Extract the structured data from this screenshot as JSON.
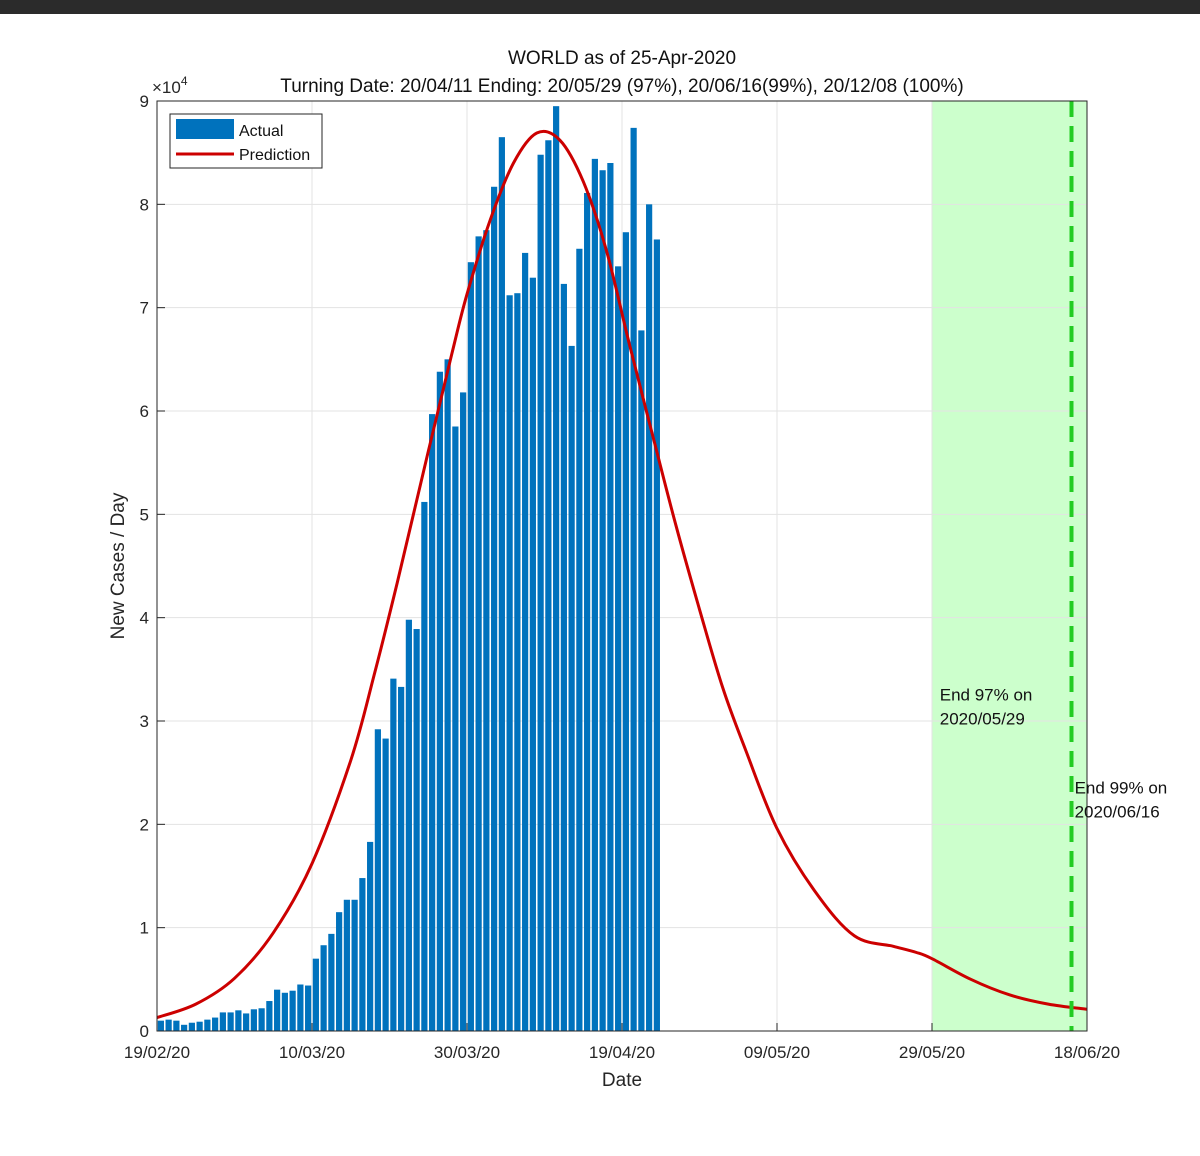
{
  "chart_data": {
    "type": "bar",
    "title": "WORLD as of 25-Apr-2020",
    "subtitle": "Turning Date: 20/04/11  Ending: 20/05/29 (97%), 20/06/16(99%), 20/12/08 (100%)",
    "xlabel": "Date",
    "ylabel": "New Cases / Day",
    "y_multiplier": "×10",
    "y_multiplier_exp": "4",
    "ylim": [
      0,
      9
    ],
    "xlim_days": [
      0,
      120
    ],
    "y_ticks": [
      0,
      1,
      2,
      3,
      4,
      5,
      6,
      7,
      8,
      9
    ],
    "x_ticks": [
      {
        "day": 0,
        "label": "19/02/20"
      },
      {
        "day": 20,
        "label": "10/03/20"
      },
      {
        "day": 40,
        "label": "30/03/20"
      },
      {
        "day": 60,
        "label": "19/04/20"
      },
      {
        "day": 80,
        "label": "09/05/20"
      },
      {
        "day": 100,
        "label": "29/05/20"
      },
      {
        "day": 120,
        "label": "18/06/20"
      }
    ],
    "grid": true,
    "legend": {
      "position": "top-left",
      "entries": [
        "Actual",
        "Prediction"
      ]
    },
    "series": [
      {
        "name": "Actual",
        "type": "bar",
        "color": "#0072BD",
        "start_day": 0,
        "values": [
          0.1,
          0.11,
          0.1,
          0.06,
          0.08,
          0.09,
          0.11,
          0.13,
          0.18,
          0.18,
          0.2,
          0.17,
          0.21,
          0.22,
          0.29,
          0.4,
          0.37,
          0.39,
          0.45,
          0.44,
          0.7,
          0.83,
          0.94,
          1.15,
          1.27,
          1.27,
          1.48,
          1.83,
          2.92,
          2.83,
          3.41,
          3.33,
          3.98,
          3.89,
          5.12,
          5.97,
          6.38,
          6.5,
          5.85,
          6.18,
          7.44,
          7.69,
          7.75,
          8.17,
          8.65,
          7.12,
          7.14,
          7.53,
          7.29,
          8.48,
          8.62,
          8.95,
          7.23,
          6.63,
          7.57,
          8.11,
          8.44,
          8.33,
          8.4,
          7.4,
          7.73,
          8.74,
          6.78,
          8.0,
          7.66
        ]
      },
      {
        "name": "Prediction",
        "type": "line",
        "color": "#CC0000",
        "x_days": [
          0,
          5,
          10,
          15,
          20,
          25,
          28,
          31,
          35,
          38,
          40,
          43,
          46,
          49,
          52,
          55,
          58,
          61,
          64,
          67,
          70,
          73,
          76,
          80,
          85,
          90,
          95,
          98,
          100,
          105,
          110,
          115,
          120
        ],
        "values": [
          0.13,
          0.26,
          0.51,
          0.95,
          1.62,
          2.62,
          3.44,
          4.34,
          5.61,
          6.54,
          7.13,
          7.85,
          8.4,
          8.69,
          8.62,
          8.22,
          7.55,
          6.63,
          5.75,
          4.88,
          4.08,
          3.32,
          2.71,
          1.96,
          1.34,
          0.92,
          0.82,
          0.76,
          0.7,
          0.5,
          0.35,
          0.26,
          0.21
        ]
      }
    ],
    "shaded_region": {
      "from_day": 100,
      "to_day": 120,
      "color": "#ccffcc"
    },
    "vline": {
      "day": 118,
      "color": "#22cc22",
      "style": "dashed"
    },
    "annotations": [
      {
        "lines": [
          "End 97% on",
          "2020/05/29"
        ],
        "day": 101,
        "value": 3.2
      },
      {
        "lines": [
          "End 99% on",
          "2020/06/16"
        ],
        "day": 118.4,
        "value": 2.3
      }
    ]
  }
}
